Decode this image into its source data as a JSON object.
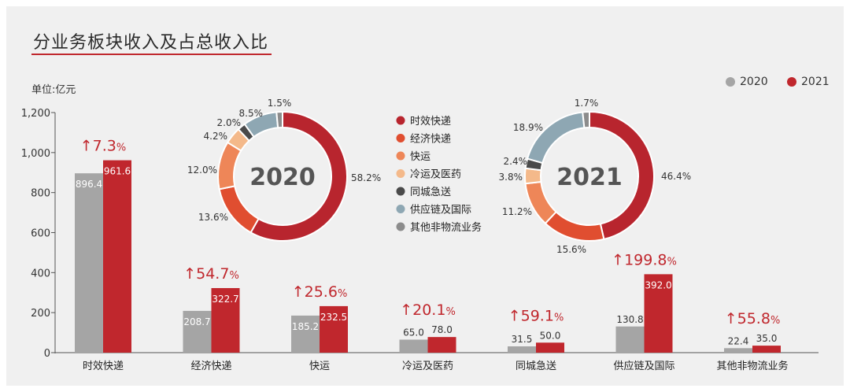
{
  "title": "分业务板块收入及占总收入比",
  "unit_label": "单位:亿元",
  "colors": {
    "y2020": "#a5a5a5",
    "y2021": "#c0272d",
    "growth": "#c0272d"
  },
  "legend": [
    {
      "label": "2020",
      "color": "#a5a5a5"
    },
    {
      "label": "2021",
      "color": "#c0272d"
    }
  ],
  "chart_data": [
    {
      "type": "bar",
      "categories": [
        "时效快递",
        "经济快递",
        "快运",
        "冷运及医药",
        "同城急送",
        "供应链及国际",
        "其他非物流业务"
      ],
      "series": [
        {
          "name": "2020",
          "values": [
            896.4,
            208.7,
            185.2,
            65.0,
            31.5,
            130.8,
            22.4
          ],
          "labels": [
            "896.4",
            "208.7",
            "185.2",
            "65.0",
            "31.5",
            "130.8",
            "22.4"
          ]
        },
        {
          "name": "2021",
          "values": [
            961.6,
            322.7,
            232.5,
            78.0,
            50.0,
            392.0,
            35.0
          ],
          "labels": [
            "961.6",
            "322.7",
            "232.5",
            "78.0",
            "50.0",
            "392.0",
            "35.0"
          ]
        }
      ],
      "growth": [
        "7.3",
        "54.7",
        "25.6",
        "20.1",
        "59.1",
        "199.8",
        "55.8"
      ],
      "growth_arrow": "↑",
      "growth_unit": "%",
      "ylim": [
        0,
        1200
      ],
      "yticks": [
        0,
        200,
        400,
        600,
        800,
        1000,
        1200
      ],
      "ytick_labels": [
        "0",
        "200",
        "400",
        "600",
        "800",
        "1,000",
        "1,200"
      ],
      "grid": false
    },
    {
      "type": "pie",
      "center_label": "2020",
      "slices": [
        {
          "name": "时效快递",
          "value": 58.2,
          "label": "58.2%",
          "color": "#b8252e"
        },
        {
          "name": "经济快递",
          "value": 13.6,
          "label": "13.6%",
          "color": "#e04e30"
        },
        {
          "name": "快运",
          "value": 12.0,
          "label": "12.0%",
          "color": "#ee8658"
        },
        {
          "name": "冷运及医药",
          "value": 4.2,
          "label": "4.2%",
          "color": "#f4b98a"
        },
        {
          "name": "同城急送",
          "value": 2.0,
          "label": "2.0%",
          "color": "#4a4a4a"
        },
        {
          "name": "供应链及国际",
          "value": 8.5,
          "label": "8.5%",
          "color": "#8ea7b3"
        },
        {
          "name": "其他非物流业务",
          "value": 1.5,
          "label": "1.5%",
          "color": "#8c8c8c"
        }
      ]
    },
    {
      "type": "pie",
      "center_label": "2021",
      "slices": [
        {
          "name": "时效快递",
          "value": 46.4,
          "label": "46.4%",
          "color": "#b8252e"
        },
        {
          "name": "经济快递",
          "value": 15.6,
          "label": "15.6%",
          "color": "#e04e30"
        },
        {
          "name": "快运",
          "value": 11.2,
          "label": "11.2%",
          "color": "#ee8658"
        },
        {
          "name": "冷运及医药",
          "value": 3.8,
          "label": "3.8%",
          "color": "#f4b98a"
        },
        {
          "name": "同城急送",
          "value": 2.4,
          "label": "2.4%",
          "color": "#4a4a4a"
        },
        {
          "name": "供应链及国际",
          "value": 18.9,
          "label": "18.9%",
          "color": "#8ea7b3"
        },
        {
          "name": "其他非物流业务",
          "value": 1.7,
          "label": "1.7%",
          "color": "#8c8c8c"
        }
      ]
    }
  ],
  "donut_legend": [
    {
      "label": "时效快递",
      "color": "#b8252e"
    },
    {
      "label": "经济快递",
      "color": "#e04e30"
    },
    {
      "label": "快运",
      "color": "#ee8658"
    },
    {
      "label": "冷运及医药",
      "color": "#f4b98a"
    },
    {
      "label": "同城急送",
      "color": "#4a4a4a"
    },
    {
      "label": "供应链及国际",
      "color": "#8ea7b3"
    },
    {
      "label": "其他非物流业务",
      "color": "#8c8c8c"
    }
  ]
}
